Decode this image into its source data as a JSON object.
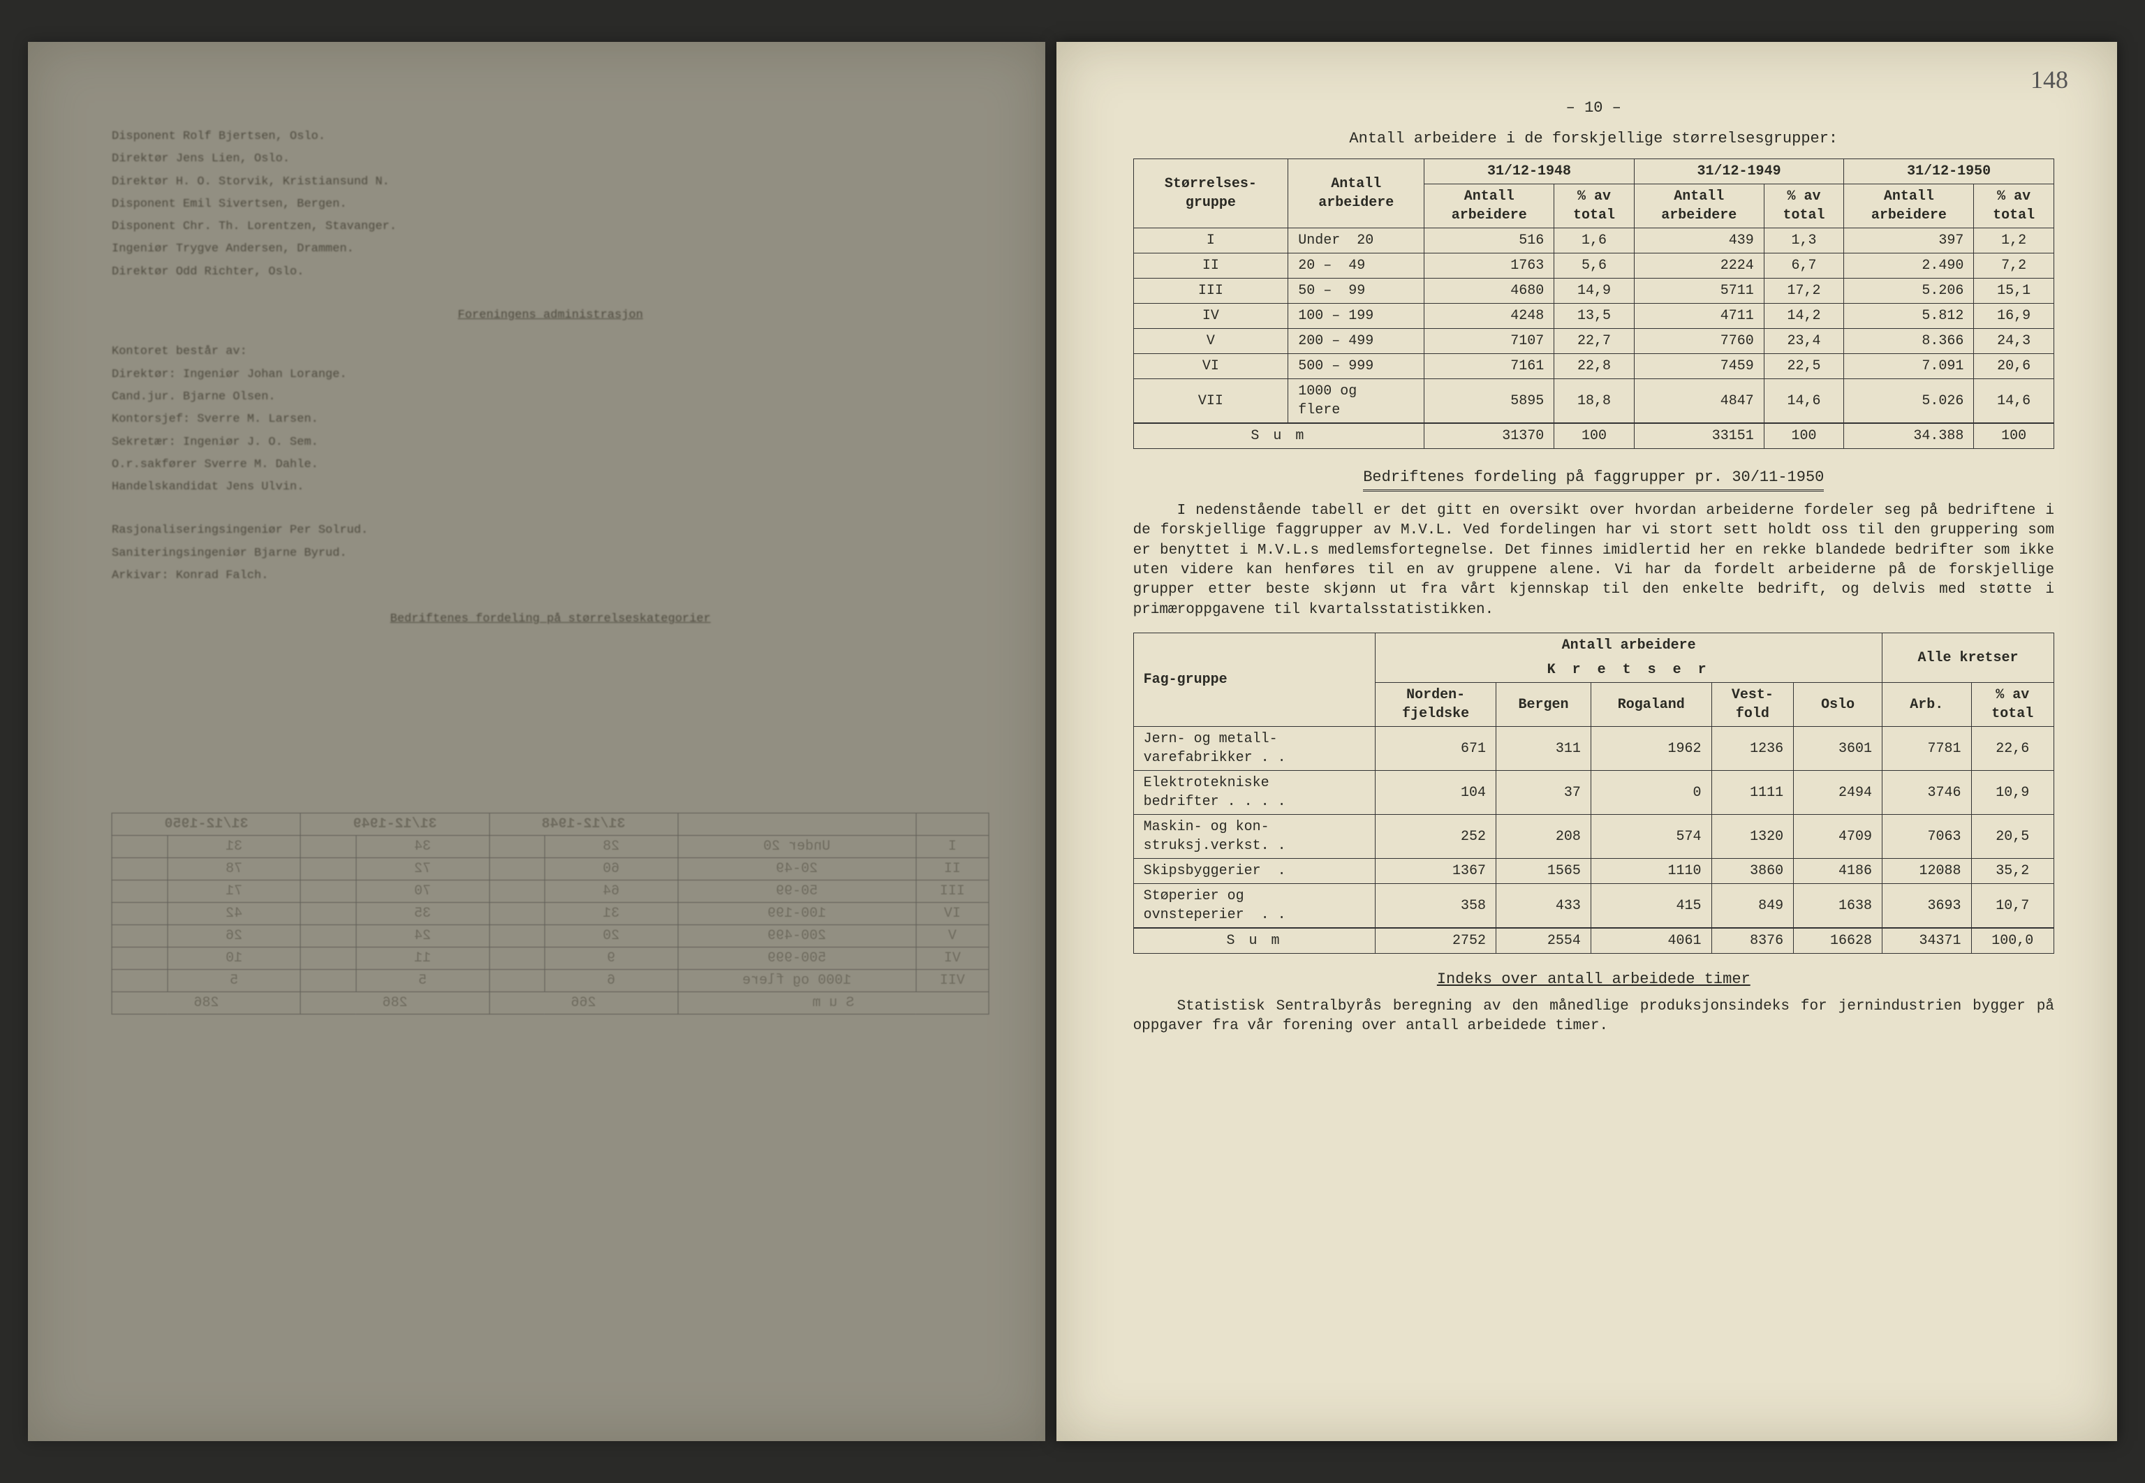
{
  "pageNumbers": {
    "handwritten": "148",
    "printed": "– 10 –"
  },
  "heading1": "Antall arbeidere i de forskjellige størrelsesgrupper:",
  "table1": {
    "colGroups": [
      "31/12-1948",
      "31/12-1949",
      "31/12-1950"
    ],
    "headers": {
      "grpCol": "Størrelses-\ngruppe",
      "workersCol": "Antall\narbeidere",
      "sub1": "Antall\narbeidere",
      "sub2": "% av\ntotal"
    },
    "rows": [
      {
        "g": "I",
        "range": "Under  20",
        "a48": "516",
        "p48": "1,6",
        "a49": "439",
        "p49": "1,3",
        "a50": "397",
        "p50": "1,2"
      },
      {
        "g": "II",
        "range": "20 –  49",
        "a48": "1763",
        "p48": "5,6",
        "a49": "2224",
        "p49": "6,7",
        "a50": "2.490",
        "p50": "7,2"
      },
      {
        "g": "III",
        "range": "50 –  99",
        "a48": "4680",
        "p48": "14,9",
        "a49": "5711",
        "p49": "17,2",
        "a50": "5.206",
        "p50": "15,1"
      },
      {
        "g": "IV",
        "range": "100 – 199",
        "a48": "4248",
        "p48": "13,5",
        "a49": "4711",
        "p49": "14,2",
        "a50": "5.812",
        "p50": "16,9"
      },
      {
        "g": "V",
        "range": "200 – 499",
        "a48": "7107",
        "p48": "22,7",
        "a49": "7760",
        "p49": "23,4",
        "a50": "8.366",
        "p50": "24,3"
      },
      {
        "g": "VI",
        "range": "500 – 999",
        "a48": "7161",
        "p48": "22,8",
        "a49": "7459",
        "p49": "22,5",
        "a50": "7.091",
        "p50": "20,6"
      },
      {
        "g": "VII",
        "range": "1000 og\nflere",
        "a48": "5895",
        "p48": "18,8",
        "a49": "4847",
        "p49": "14,6",
        "a50": "5.026",
        "p50": "14,6"
      }
    ],
    "sum": {
      "label": "S u m",
      "a48": "31370",
      "p48": "100",
      "a49": "33151",
      "p49": "100",
      "a50": "34.388",
      "p50": "100"
    }
  },
  "sectionTitle2": "Bedriftenes fordeling på faggrupper pr. 30/11-1950",
  "para1": "I nedenstående tabell er det gitt en oversikt over hvordan arbeiderne fordeler seg på bedriftene i de forskjellige faggrupper av M.V.L. Ved fordelingen har vi stort sett holdt oss til den gruppering som er benyttet i M.V.L.s medlemsfortegnelse. Det finnes imidlertid her en rekke blandede bedrifter som ikke uten videre kan henføres til en av gruppene alene. Vi har da fordelt arbeiderne på de forskjellige grupper etter beste skjønn ut fra vårt kjennskap til den enkelte bedrift, og delvis med støtte i primæroppgavene til kvartalsstatistikken.",
  "table2": {
    "superHeader": "Antall  arbeidere",
    "kretser": "K r e t s e r",
    "headers": {
      "fag": "Fag-gruppe",
      "cols": [
        "Norden-\nfjeldske",
        "Bergen",
        "Rogaland",
        "Vest-\nfold",
        "Oslo"
      ],
      "alle": "Alle kretser",
      "arb": "Arb.",
      "pct": "% av\ntotal"
    },
    "rows": [
      {
        "fag": "Jern- og metall-\nvarefabrikker . .",
        "c": [
          "671",
          "311",
          "1962",
          "1236",
          "3601"
        ],
        "arb": "7781",
        "pct": "22,6"
      },
      {
        "fag": "Elektrotekniske\nbedrifter . . . .",
        "c": [
          "104",
          "37",
          "0",
          "1111",
          "2494"
        ],
        "arb": "3746",
        "pct": "10,9"
      },
      {
        "fag": "Maskin- og kon-\nstruksj.verkst. .",
        "c": [
          "252",
          "208",
          "574",
          "1320",
          "4709"
        ],
        "arb": "7063",
        "pct": "20,5"
      },
      {
        "fag": "Skipsbyggerier  .",
        "c": [
          "1367",
          "1565",
          "1110",
          "3860",
          "4186"
        ],
        "arb": "12088",
        "pct": "35,2"
      },
      {
        "fag": "Støperier og\novnsteperier  . .",
        "c": [
          "358",
          "433",
          "415",
          "849",
          "1638"
        ],
        "arb": "3693",
        "pct": "10,7"
      }
    ],
    "sum": {
      "label": "S u m",
      "c": [
        "2752",
        "2554",
        "4061",
        "8376",
        "16628"
      ],
      "arb": "34371",
      "pct": "100,0"
    }
  },
  "subhead3": "Indeks over antall arbeidede timer",
  "para2": "Statistisk Sentralbyrås beregning av den månedlige produksjonsindeks for jernindustrien bygger på oppgaver fra vår forening over antall arbeidede timer.",
  "leftPage": {
    "ghostLines": [
      "Disponent Rolf Bjertsen, Oslo.",
      "Direktør Jens Lien, Oslo.",
      "Direktør H. O. Storvik, Kristiansund N.",
      "Disponent Emil Sivertsen, Bergen.",
      "Disponent Chr. Th. Lorentzen, Stavanger.",
      "Ingeniør Trygve Andersen, Drammen.",
      "Direktør Odd Richter, Oslo."
    ],
    "ghostHead": "Foreningens administrasjon",
    "ghostLines2": [
      "Kontoret består av:",
      "Direktør:        Ingeniør Johan Lorange.",
      "Cand.jur. Bjarne Olsen.",
      "Kontorsjef:      Sverre M. Larsen.",
      "Sekretær:        Ingeniør J. O. Sem.",
      "O.r.sakfører Sverre M. Dahle.",
      "Handelskandidat Jens Ulvin."
    ],
    "ghostLines3": [
      "Rasjonaliseringsingeniør Per Solrud.",
      "Saniteringsingeniør Bjarne Byrud.",
      "Arkivar: Konrad Falch."
    ],
    "ghostSection": "Bedriftenes fordeling på størrelseskategorier"
  },
  "colors": {
    "paper": "#e8e2cc",
    "ink": "#2a2a24",
    "fadedInk": "#6a6450",
    "background": "#1a1a1a"
  },
  "typography": {
    "fontFamily": "Courier New, monospace",
    "bodySize": 22,
    "tableSize": 20,
    "leftPageSize": 18
  }
}
